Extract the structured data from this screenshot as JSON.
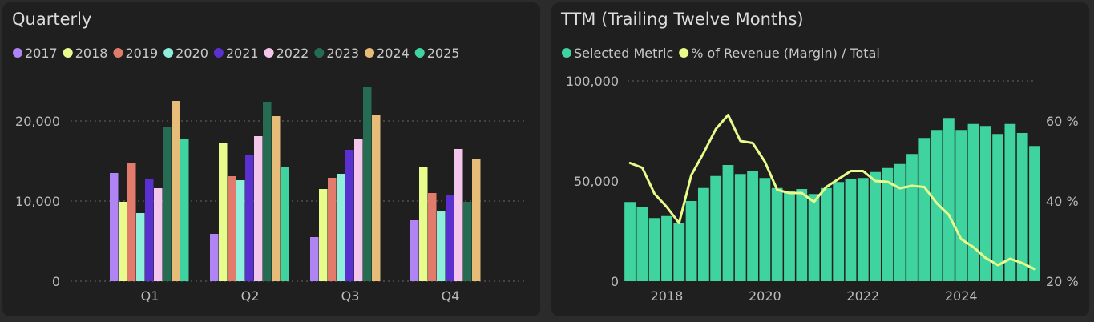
{
  "chart_data": [
    {
      "type": "bar",
      "title": "Quarterly",
      "categories": [
        "Q1",
        "Q2",
        "Q3",
        "Q4"
      ],
      "ylim": [
        0,
        25000
      ],
      "yticks": [
        0,
        10000,
        20000
      ],
      "ytick_labels": [
        "0",
        "10,000",
        "20,000"
      ],
      "legend_position": "top-left",
      "series": [
        {
          "name": "2017",
          "color": "#b084f4",
          "values": [
            13500,
            5900,
            5500,
            7600
          ]
        },
        {
          "name": "2018",
          "color": "#e8fc8c",
          "values": [
            9900,
            17300,
            11500,
            14300
          ]
        },
        {
          "name": "2019",
          "color": "#e37b6c",
          "values": [
            14800,
            13100,
            12900,
            11000
          ]
        },
        {
          "name": "2020",
          "color": "#8ef0dc",
          "values": [
            8500,
            12600,
            13400,
            8800
          ]
        },
        {
          "name": "2021",
          "color": "#5b30d0",
          "values": [
            12700,
            15700,
            16400,
            10800
          ]
        },
        {
          "name": "2022",
          "color": "#f4c6ec",
          "values": [
            11600,
            18100,
            17700,
            16500
          ]
        },
        {
          "name": "2023",
          "color": "#266c52",
          "values": [
            19200,
            22400,
            24300,
            9900
          ]
        },
        {
          "name": "2024",
          "color": "#e6bc78",
          "values": [
            22500,
            20600,
            20700,
            15300
          ]
        },
        {
          "name": "2025",
          "color": "#3fd3a0",
          "values": [
            17800,
            14300,
            null,
            null
          ]
        }
      ]
    },
    {
      "type": "bar+line",
      "title": "TTM (Trailing Twelve Months)",
      "legend_position": "top-left",
      "x_range": [
        2017.2,
        2025.5
      ],
      "xticks": [
        2018,
        2020,
        2022,
        2024
      ],
      "xtick_labels": [
        "2018",
        "2020",
        "2022",
        "2024"
      ],
      "left_axis": {
        "ylim": [
          0,
          100000
        ],
        "ticks": [
          0,
          50000,
          100000
        ],
        "tick_labels": [
          "0",
          "50,000",
          "100,000"
        ]
      },
      "right_axis": {
        "ylim": [
          20,
          65
        ],
        "ticks": [
          20,
          40,
          60
        ],
        "tick_labels": [
          "20 %",
          "40 %",
          "60 %"
        ]
      },
      "x": [
        2017.25,
        2017.5,
        2017.75,
        2018.0,
        2018.25,
        2018.5,
        2018.75,
        2019.0,
        2019.25,
        2019.5,
        2019.75,
        2020.0,
        2020.25,
        2020.5,
        2020.75,
        2021.0,
        2021.25,
        2021.5,
        2021.75,
        2022.0,
        2022.25,
        2022.5,
        2022.75,
        2023.0,
        2023.25,
        2023.5,
        2023.75,
        2024.0,
        2024.25,
        2024.5,
        2024.75,
        2025.0,
        2025.25,
        2025.5
      ],
      "series": [
        {
          "name": "Selected Metric",
          "kind": "bar",
          "axis": "left",
          "color": "#3fd3a0",
          "values": [
            39500,
            37000,
            31500,
            32500,
            29000,
            40000,
            46500,
            52500,
            58000,
            53500,
            55000,
            51500,
            46500,
            45000,
            46000,
            43500,
            46500,
            49500,
            51000,
            51500,
            54500,
            56500,
            58500,
            63500,
            71500,
            75500,
            81500,
            75500,
            78500,
            77500,
            73500,
            78500,
            74000,
            67500
          ]
        },
        {
          "name": "% of Revenue (Margin) / Total",
          "kind": "line",
          "axis": "right",
          "color": "#e8fc8c",
          "values": [
            49.5,
            48.3,
            41.8,
            38.5,
            34.5,
            46.5,
            52.0,
            58.0,
            61.5,
            55.0,
            54.5,
            49.8,
            42.8,
            42.0,
            42.0,
            39.8,
            43.5,
            45.5,
            47.5,
            47.5,
            45.0,
            44.8,
            43.2,
            43.8,
            43.5,
            39.5,
            36.5,
            30.5,
            28.5,
            25.8,
            24.0,
            25.6,
            24.5,
            23.0
          ]
        }
      ]
    }
  ]
}
